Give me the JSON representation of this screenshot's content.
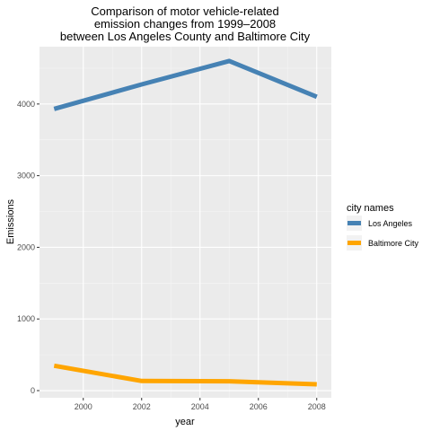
{
  "chart_data": {
    "type": "line",
    "title": [
      "Comparison of motor vehicle-related",
      "emission changes from 1999–2008",
      "between Los Angeles County and Baltimore City"
    ],
    "xlabel": "year",
    "ylabel": "Emissions",
    "x": [
      1999,
      2002,
      2005,
      2008
    ],
    "x_ticks": [
      2000,
      2002,
      2004,
      2006,
      2008
    ],
    "x_tick_labels": [
      "2000",
      "2002",
      "2004",
      "2006",
      "2008"
    ],
    "xlim": [
      1998.5,
      2008.5
    ],
    "y_ticks": [
      0,
      1000,
      2000,
      3000,
      4000
    ],
    "y_tick_labels": [
      "0",
      "1000",
      "2000",
      "3000",
      "4000"
    ],
    "ylim": [
      -100,
      4800
    ],
    "grid": true,
    "legend_placement": "right",
    "legend_title": "city names",
    "series": [
      {
        "name": "Los Angeles",
        "color": "#4682b4",
        "values": [
          3931,
          4274,
          4601,
          4101
        ]
      },
      {
        "name": "Baltimore City",
        "color": "#ffa500",
        "values": [
          347,
          134,
          130,
          88
        ]
      }
    ]
  }
}
